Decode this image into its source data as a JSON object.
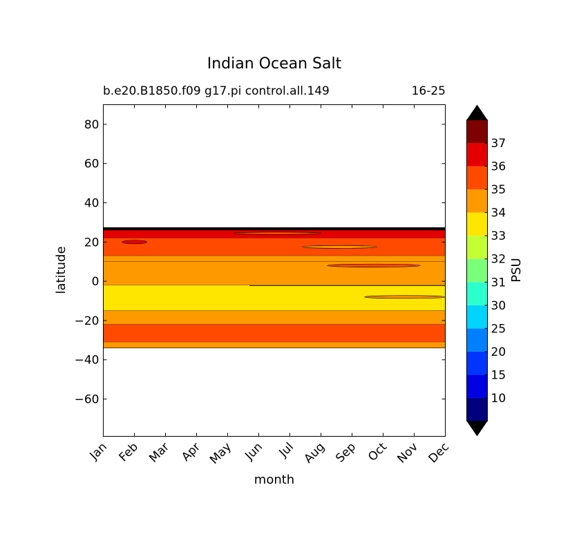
{
  "chart_data": {
    "type": "heatmap",
    "title": "Indian Ocean Salt",
    "subtitle_left": "b.e20.B1850.f09 g17.pi control.all.149",
    "subtitle_right": "16-25",
    "xlabel": "month",
    "ylabel": "latitude",
    "x_ticks": [
      "Jan",
      "Feb",
      "Mar",
      "Apr",
      "May",
      "Jun",
      "Jul",
      "Aug",
      "Sep",
      "Oct",
      "Nov",
      "Dec"
    ],
    "y_ticks": [
      80,
      60,
      40,
      20,
      0,
      -20,
      -40,
      -60
    ],
    "ylim": [
      -79,
      90
    ],
    "grid": false,
    "colorbar": {
      "label": "PSU",
      "levels": [
        5,
        10,
        15,
        20,
        25,
        30,
        31,
        32,
        33,
        34,
        35,
        36,
        37,
        38
      ],
      "tick_labels": [
        "10",
        "15",
        "20",
        "25",
        "30",
        "31",
        "32",
        "33",
        "34",
        "35",
        "36",
        "37"
      ],
      "colors": [
        "#00007f",
        "#0000e3",
        "#0035ff",
        "#0080ff",
        "#00d4ff",
        "#2bffcd",
        "#7bff7b",
        "#c4ff33",
        "#ffe600",
        "#ff9900",
        "#ff4a00",
        "#e40000",
        "#7f0000"
      ],
      "extend_colors": {
        "under": "#000000",
        "over": "#000000"
      }
    },
    "bands": [
      {
        "lat_range": [
          26,
          27.5
        ],
        "psu_range": "below 5",
        "color": "#000000"
      },
      {
        "lat_range": [
          22,
          26
        ],
        "psu_range": "36-37",
        "color": "#e40000"
      },
      {
        "lat_range": [
          13,
          22
        ],
        "psu_range": "35-36",
        "color": "#ff4a00"
      },
      {
        "lat_range": [
          10,
          13
        ],
        "psu_range": "34-35",
        "color": "#ff9900"
      },
      {
        "lat_range": [
          -2,
          10
        ],
        "psu_range": "34-35",
        "color": "#ff9900"
      },
      {
        "lat_range": [
          -15,
          -2
        ],
        "psu_range": "33-34",
        "color": "#ffe600"
      },
      {
        "lat_range": [
          -22,
          -15
        ],
        "psu_range": "34-35",
        "color": "#ff9900"
      },
      {
        "lat_range": [
          -31,
          -22
        ],
        "psu_range": "35-36",
        "color": "#ff4a00"
      },
      {
        "lat_range": [
          -34,
          -31
        ],
        "psu_range": "34-35",
        "color": "#ff9900"
      }
    ]
  }
}
